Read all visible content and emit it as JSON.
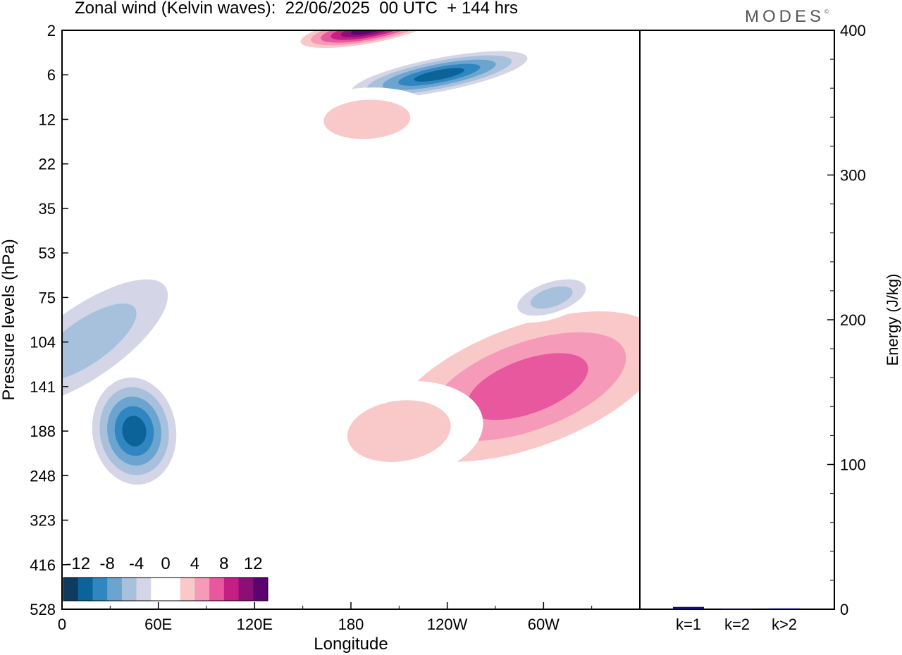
{
  "header": {
    "title": "Zonal wind (Kelvin waves):  22/06/2025  00 UTC  + 144 hrs",
    "brand": "MODES",
    "brand_mark": "©"
  },
  "colors": {
    "scale": [
      "#0d3c5e",
      "#0b6399",
      "#2f86c0",
      "#6aa4cf",
      "#a7c0dc",
      "#d4d6e8",
      "#ffffff",
      "#ffffff",
      "#f9c8c8",
      "#f59ab8",
      "#e8589e",
      "#c51e84",
      "#8c0f78",
      "#5b0470"
    ],
    "energy_bar": "#10106e"
  },
  "chart_data": [
    {
      "type": "heatmap",
      "title": "Zonal wind (Kelvin waves):  22/06/2025  00 UTC  + 144 hrs",
      "xlabel": "Longitude",
      "ylabel": "Pressure levels (hPa)",
      "x_ticks": [
        "0",
        "60E",
        "120E",
        "180",
        "120W",
        "60W"
      ],
      "y_levels": [
        "2",
        "6",
        "12",
        "22",
        "35",
        "53",
        "75",
        "104",
        "141",
        "188",
        "248",
        "323",
        "416",
        "528"
      ],
      "colorbar_labels": [
        "-12",
        "-8",
        "-4",
        "0",
        "4",
        "8",
        "12"
      ],
      "colorbar_levels": [
        -14,
        -12,
        -10,
        -8,
        -6,
        -4,
        -2,
        0,
        2,
        4,
        6,
        8,
        10,
        12,
        14
      ],
      "grid": false,
      "legend": "colorbar bottom-left inside plot",
      "features": [
        {
          "name": "easterly max lower troposphere",
          "lon": 45,
          "level": "188",
          "value": -13
        },
        {
          "name": "easterly band",
          "lon": 15,
          "level": "104",
          "value": -6
        },
        {
          "name": "westerly band",
          "lon": 290,
          "level": "141",
          "value": 8
        },
        {
          "name": "westerly band",
          "lon": 210,
          "level": "188",
          "value": 5
        },
        {
          "name": "stratospheric westerly",
          "lon": 190,
          "level": "2",
          "value": 14
        },
        {
          "name": "stratospheric easterly",
          "lon": 235,
          "level": "6",
          "value": -12
        },
        {
          "name": "westerly patch",
          "lon": 190,
          "level": "12",
          "value": 4
        },
        {
          "name": "easterly patch",
          "lon": 305,
          "level": "75",
          "value": -6
        }
      ]
    },
    {
      "type": "bar",
      "categories": [
        "k=1",
        "k=2",
        "k>2"
      ],
      "values": [
        1.6,
        0.3,
        0.6
      ],
      "ylabel": "Energy (J/kg)",
      "ylim": [
        0,
        400
      ],
      "y_ticks": [
        "0",
        "100",
        "200",
        "300",
        "400"
      ],
      "axis_position": "right"
    }
  ]
}
